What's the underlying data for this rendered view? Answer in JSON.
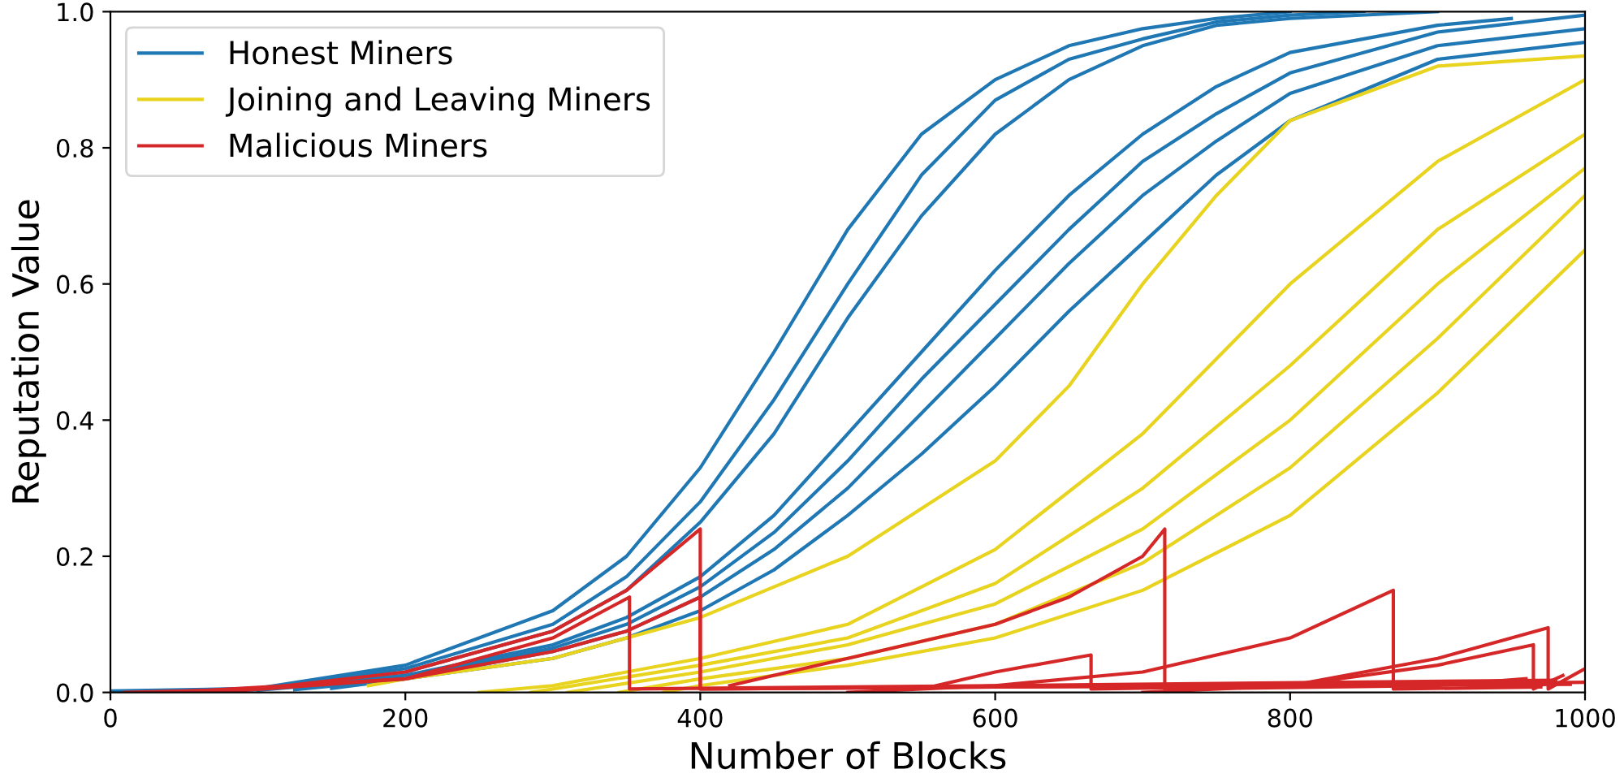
{
  "chart_data": {
    "type": "line",
    "xlabel": "Number of Blocks",
    "ylabel": "Reputation Value",
    "xlim": [
      0,
      1000
    ],
    "xticks": [
      0,
      200,
      400,
      600,
      800,
      1000
    ],
    "ylim": [
      0,
      1
    ],
    "yticks": [
      {
        "value": 0,
        "label": "0.0"
      },
      {
        "value": 0.2,
        "label": "0.2"
      },
      {
        "value": 0.4,
        "label": "0.4"
      },
      {
        "value": 0.6,
        "label": "0.6"
      },
      {
        "value": 0.8,
        "label": "0.8"
      },
      {
        "value": 1,
        "label": "1.0"
      }
    ],
    "grid": false,
    "legend": "top left",
    "line_style": "solid",
    "marker": "none",
    "series": [
      {
        "name": "Honest Miners",
        "color": "#1f77b4",
        "x": [
          0,
          100,
          200,
          300,
          350,
          400,
          450,
          500,
          550,
          600,
          650,
          700,
          750,
          800
        ],
        "values": [
          0.002,
          0.006,
          0.04,
          0.12,
          0.2,
          0.33,
          0.5,
          0.68,
          0.82,
          0.9,
          0.95,
          0.975,
          0.99,
          1
        ]
      },
      {
        "color": "#1f77b4",
        "x": [
          25,
          100,
          200,
          300,
          350,
          400,
          450,
          500,
          550,
          600,
          650,
          700,
          750,
          800,
          850
        ],
        "values": [
          0.002,
          0.005,
          0.035,
          0.1,
          0.17,
          0.28,
          0.43,
          0.6,
          0.76,
          0.87,
          0.93,
          0.96,
          0.985,
          0.995,
          1
        ]
      },
      {
        "color": "#1f77b4",
        "x": [
          50,
          100,
          200,
          300,
          350,
          400,
          450,
          500,
          550,
          600,
          650,
          700,
          750,
          800,
          900
        ],
        "values": [
          0.002,
          0.005,
          0.03,
          0.09,
          0.15,
          0.25,
          0.38,
          0.55,
          0.7,
          0.82,
          0.9,
          0.95,
          0.98,
          0.99,
          1
        ]
      },
      {
        "color": "#1f77b4",
        "x": [
          75,
          100,
          200,
          300,
          350,
          400,
          450,
          500,
          550,
          600,
          650,
          700,
          750,
          800,
          900,
          950
        ],
        "values": [
          0.002,
          0.004,
          0.025,
          0.07,
          0.11,
          0.17,
          0.26,
          0.38,
          0.5,
          0.62,
          0.73,
          0.82,
          0.89,
          0.94,
          0.98,
          0.99
        ]
      },
      {
        "color": "#1f77b4",
        "x": [
          100,
          200,
          300,
          350,
          400,
          450,
          500,
          550,
          600,
          650,
          700,
          750,
          800,
          900,
          1000
        ],
        "values": [
          0.003,
          0.022,
          0.065,
          0.1,
          0.155,
          0.235,
          0.34,
          0.46,
          0.57,
          0.68,
          0.78,
          0.85,
          0.91,
          0.97,
          0.995
        ]
      },
      {
        "color": "#1f77b4",
        "x": [
          125,
          200,
          300,
          350,
          400,
          450,
          500,
          550,
          600,
          650,
          700,
          750,
          800,
          900,
          1000
        ],
        "values": [
          0.004,
          0.02,
          0.06,
          0.09,
          0.14,
          0.21,
          0.3,
          0.41,
          0.52,
          0.63,
          0.73,
          0.81,
          0.88,
          0.95,
          0.975
        ]
      },
      {
        "color": "#1f77b4",
        "x": [
          150,
          200,
          300,
          350,
          400,
          450,
          500,
          550,
          600,
          650,
          700,
          750,
          800,
          900,
          1000
        ],
        "values": [
          0.006,
          0.02,
          0.05,
          0.08,
          0.12,
          0.18,
          0.26,
          0.35,
          0.45,
          0.56,
          0.66,
          0.76,
          0.84,
          0.93,
          0.955
        ]
      },
      {
        "name": "Joining and Leaving Miners",
        "color": "#e8d31f",
        "x": [
          175,
          200,
          300,
          400,
          500,
          600,
          650,
          700,
          750,
          800,
          900,
          1000
        ],
        "values": [
          0.01,
          0.02,
          0.05,
          0.11,
          0.2,
          0.34,
          0.45,
          0.6,
          0.73,
          0.84,
          0.92,
          0.935
        ]
      },
      {
        "color": "#e8d31f",
        "x": [
          250,
          300,
          400,
          500,
          600,
          700,
          800,
          900,
          1000
        ],
        "values": [
          0,
          0.01,
          0.05,
          0.1,
          0.21,
          0.38,
          0.6,
          0.78,
          0.9
        ]
      },
      {
        "color": "#e8d31f",
        "x": [
          285,
          300,
          400,
          500,
          600,
          700,
          800,
          900,
          1000
        ],
        "values": [
          0,
          0.005,
          0.04,
          0.08,
          0.16,
          0.3,
          0.48,
          0.68,
          0.82
        ]
      },
      {
        "color": "#e8d31f",
        "x": [
          310,
          400,
          500,
          600,
          700,
          800,
          900,
          1000
        ],
        "values": [
          0,
          0.03,
          0.07,
          0.13,
          0.24,
          0.4,
          0.6,
          0.77
        ]
      },
      {
        "color": "#e8d31f",
        "x": [
          345,
          400,
          500,
          600,
          700,
          800,
          900,
          1000
        ],
        "values": [
          0,
          0.02,
          0.05,
          0.1,
          0.19,
          0.33,
          0.52,
          0.73
        ]
      },
      {
        "color": "#e8d31f",
        "x": [
          375,
          400,
          500,
          600,
          700,
          800,
          900,
          1000
        ],
        "values": [
          0,
          0.01,
          0.04,
          0.08,
          0.15,
          0.26,
          0.44,
          0.65
        ]
      },
      {
        "name": "Malicious Miners",
        "color": "#d62728",
        "x": [
          10,
          100,
          200,
          300,
          350,
          400,
          400,
          600,
          800,
          1000
        ],
        "values": [
          0,
          0.005,
          0.03,
          0.09,
          0.15,
          0.24,
          0.005,
          0.008,
          0.01,
          0.015
        ]
      },
      {
        "color": "#d62728",
        "x": [
          40,
          200,
          300,
          350,
          400,
          400,
          600,
          990
        ],
        "values": [
          0,
          0.02,
          0.06,
          0.09,
          0.14,
          0.005,
          0.008,
          0.012
        ]
      },
      {
        "color": "#d62728",
        "x": [
          70,
          200,
          300,
          352,
          352,
          600,
          980
        ],
        "values": [
          0,
          0.02,
          0.08,
          0.14,
          0.005,
          0.01,
          0.018
        ]
      },
      {
        "color": "#d62728",
        "x": [
          420,
          500,
          600,
          650,
          700,
          715,
          715,
          900,
          960
        ],
        "values": [
          0.01,
          0.05,
          0.1,
          0.14,
          0.2,
          0.24,
          0.005,
          0.01,
          0.02
        ]
      },
      {
        "color": "#d62728",
        "x": [
          500,
          600,
          700,
          800,
          870,
          870,
          970
        ],
        "values": [
          0,
          0.01,
          0.03,
          0.08,
          0.15,
          0.005,
          0.008
        ]
      },
      {
        "color": "#d62728",
        "x": [
          560,
          600,
          665,
          665,
          800,
          900,
          975,
          975,
          1000
        ],
        "values": [
          0.01,
          0.03,
          0.055,
          0.005,
          0.01,
          0.05,
          0.095,
          0.005,
          0.035
        ]
      },
      {
        "color": "#d62728",
        "x": [
          700,
          800,
          900,
          965,
          965,
          985
        ],
        "values": [
          0,
          0.01,
          0.04,
          0.07,
          0.005,
          0.025
        ]
      }
    ]
  }
}
